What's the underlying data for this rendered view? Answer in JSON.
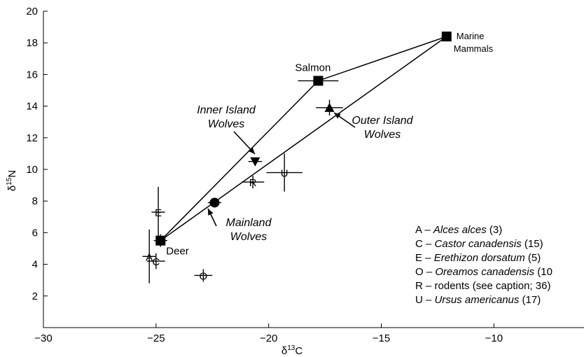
{
  "chart_data": {
    "type": "scatter",
    "xlabel": "δ13C",
    "ylabel": "δ15N",
    "xlim": [
      -30,
      -6
    ],
    "ylim": [
      0,
      20
    ],
    "xticks": [
      "−30",
      "−25",
      "−20",
      "−15",
      "−10"
    ],
    "xtick_values": [
      -30,
      -25,
      -20,
      -15,
      -10
    ],
    "yticks": [
      "2",
      "4",
      "6",
      "8",
      "10",
      "12",
      "14",
      "16",
      "18",
      "20"
    ],
    "ytick_values": [
      2,
      4,
      6,
      8,
      10,
      12,
      14,
      16,
      18,
      20
    ],
    "grid": false,
    "sources": [
      {
        "label": "Deer",
        "x": -24.8,
        "y": 5.5,
        "xerr": 0.3,
        "yerr": 0.4
      },
      {
        "label": "Salmon",
        "x": -17.8,
        "y": 15.6,
        "xerr": 0.9,
        "yerr": 0.3
      },
      {
        "label": "Marine Mammals",
        "x": -12.1,
        "y": 18.4,
        "xerr": 0.2,
        "yerr": 0.3
      }
    ],
    "wolves": [
      {
        "label": "Mainland Wolves",
        "marker": "circle",
        "x": -22.4,
        "y": 7.9,
        "xerr": 0.3,
        "yerr": 0.15
      },
      {
        "label": "Inner Island Wolves",
        "marker": "triangle-down",
        "x": -20.6,
        "y": 10.5,
        "xerr": 0.3,
        "yerr": 0.2
      },
      {
        "label": "Outer Island Wolves",
        "marker": "triangle-up",
        "x": -17.3,
        "y": 13.9,
        "xerr": 0.6,
        "yerr": 0.5
      }
    ],
    "species_points": [
      {
        "letter": "A",
        "x": -25.3,
        "y": 4.5,
        "xerr": 0.3,
        "yerr": 1.7
      },
      {
        "letter": "C",
        "x": -25.0,
        "y": 4.2,
        "xerr": 0.4,
        "yerr": 0.5
      },
      {
        "letter": "E",
        "x": -24.9,
        "y": 7.3,
        "xerr": 0.3,
        "yerr": 1.6
      },
      {
        "letter": "O",
        "x": -22.9,
        "y": 3.3,
        "xerr": 0.4,
        "yerr": 0.4
      },
      {
        "letter": "R",
        "x": -20.7,
        "y": 9.2,
        "xerr": 0.5,
        "yerr": 0.4
      },
      {
        "letter": "U",
        "x": -19.3,
        "y": 9.8,
        "xerr": 0.8,
        "yerr": 1.2
      }
    ],
    "polygons": [
      {
        "from": "Deer",
        "to": "Salmon"
      },
      {
        "from": "Salmon",
        "to": "Marine Mammals"
      },
      {
        "from": "Deer",
        "to": "Marine Mammals"
      }
    ],
    "legend": [
      {
        "letter": "A",
        "name": "Alces alces",
        "n": "(3)",
        "italic": true
      },
      {
        "letter": "C",
        "name": "Castor canadensis",
        "n": "(15)",
        "italic": true
      },
      {
        "letter": "E",
        "name": "Erethizon dorsatum",
        "n": "(5)",
        "italic": true
      },
      {
        "letter": "O",
        "name": "Oreamos canadensis",
        "n": "(10",
        "italic": true
      },
      {
        "letter": "R",
        "name": "rodents (see caption; 36)",
        "n": "",
        "italic": false
      },
      {
        "letter": "U",
        "name": "Ursus americanus",
        "n": "(17)",
        "italic": true
      }
    ],
    "legend_position": "bottom-right",
    "legend_separator": " – "
  }
}
